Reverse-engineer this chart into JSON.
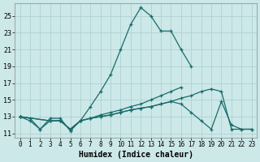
{
  "xlabel": "Humidex (Indice chaleur)",
  "bg_color": "#cce8e8",
  "line_color": "#1a6b6b",
  "grid_color": "#aacece",
  "xlim": [
    -0.5,
    23.5
  ],
  "ylim": [
    10.5,
    26.5
  ],
  "xticks": [
    0,
    1,
    2,
    3,
    4,
    5,
    6,
    7,
    8,
    9,
    10,
    11,
    12,
    13,
    14,
    15,
    16,
    17,
    18,
    19,
    20,
    21,
    22,
    23
  ],
  "yticks": [
    11,
    13,
    15,
    17,
    19,
    21,
    23,
    25
  ],
  "series": [
    {
      "x": [
        0,
        1,
        2,
        3,
        4,
        5,
        6,
        7,
        8,
        9,
        10,
        11,
        12,
        13,
        14,
        15,
        16,
        17,
        18,
        19,
        20,
        21,
        22,
        23
      ],
      "y": [
        13,
        12.8,
        11.5,
        12.8,
        12.8,
        11.3,
        12.5,
        14.2,
        16.0,
        18.0,
        21.0,
        24.0,
        26.0,
        25.0,
        23.2,
        23.2,
        21.0,
        19.0,
        null,
        null,
        null,
        null,
        null,
        null
      ]
    },
    {
      "x": [
        0,
        1,
        2,
        3,
        4,
        5,
        6,
        7,
        8,
        9,
        10,
        11,
        12,
        13,
        14,
        15,
        16,
        17,
        18,
        19,
        20,
        21,
        22,
        23
      ],
      "y": [
        13,
        12.5,
        11.5,
        12.5,
        12.5,
        11.5,
        12.5,
        12.8,
        13.2,
        13.5,
        13.8,
        14.2,
        14.5,
        15.0,
        15.5,
        16.0,
        16.5,
        null,
        null,
        null,
        null,
        null,
        null,
        null
      ]
    },
    {
      "x": [
        0,
        3,
        4,
        5,
        6,
        7,
        8,
        9,
        10,
        11,
        12,
        13,
        14,
        15,
        16,
        17,
        18,
        19,
        20,
        21,
        22,
        23
      ],
      "y": [
        13,
        12.5,
        12.5,
        11.5,
        12.5,
        12.8,
        13.0,
        13.2,
        13.5,
        13.8,
        14.0,
        14.2,
        14.5,
        14.8,
        15.2,
        15.5,
        16.0,
        16.3,
        16.0,
        11.5,
        11.5,
        11.5
      ]
    },
    {
      "x": [
        0,
        3,
        4,
        5,
        6,
        7,
        8,
        9,
        10,
        11,
        12,
        13,
        14,
        15,
        16,
        17,
        18,
        19,
        20,
        21,
        22,
        23
      ],
      "y": [
        13,
        12.5,
        12.5,
        11.5,
        12.5,
        12.8,
        13.0,
        13.2,
        13.5,
        13.8,
        14.0,
        14.2,
        14.5,
        14.8,
        14.5,
        13.5,
        12.5,
        11.5,
        14.8,
        12.0,
        11.5,
        11.5
      ]
    }
  ]
}
